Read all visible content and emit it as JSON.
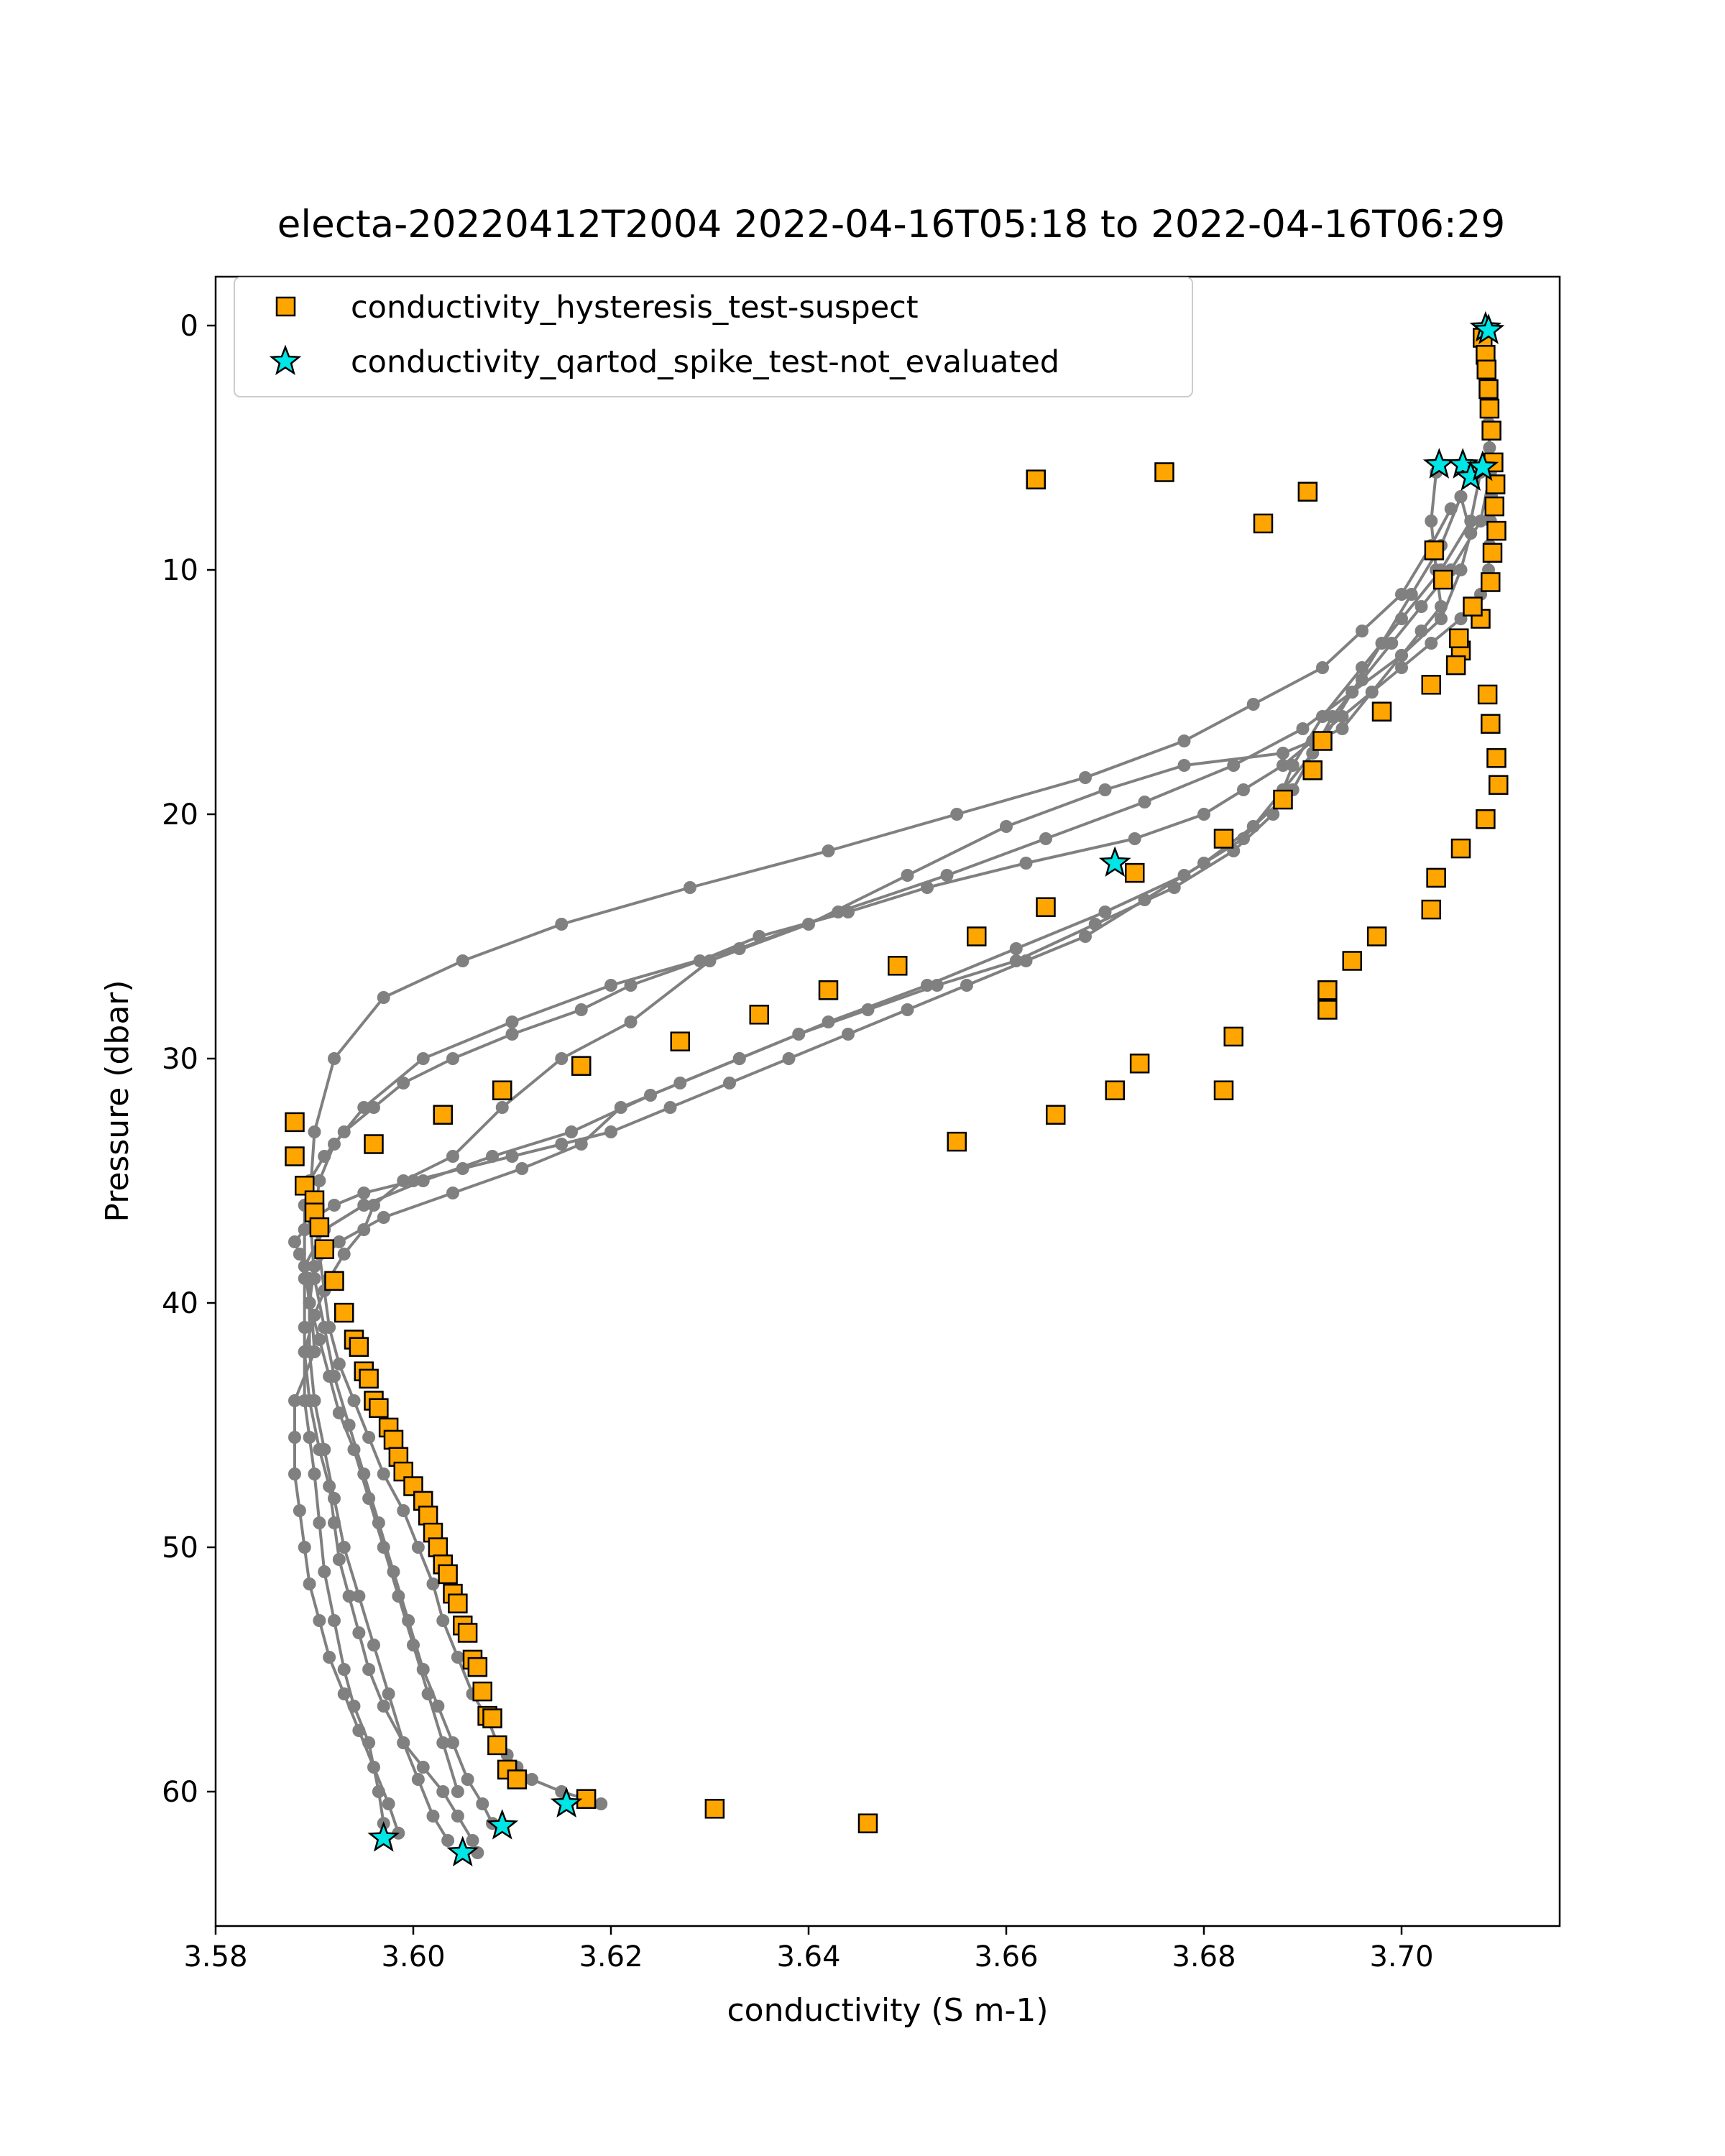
{
  "chart_data": {
    "type": "scatter",
    "title": "electa-20220412T2004 2022-04-16T05:18 to 2022-04-16T06:29",
    "xlabel": "conductivity (S m-1)",
    "ylabel": "Pressure (dbar)",
    "xlim": [
      3.58,
      3.716
    ],
    "ylim": [
      65.5,
      -2.0
    ],
    "y_inverted": true,
    "xticks": [
      "3.58",
      "3.60",
      "3.62",
      "3.64",
      "3.66",
      "3.68",
      "3.70"
    ],
    "yticks": [
      "0",
      "10",
      "20",
      "30",
      "40",
      "50",
      "60"
    ],
    "grid": false,
    "legend": {
      "placement": "upper-left",
      "entries": [
        "conductivity_hysteresis_test-suspect",
        "conductivity_qartod_spike_test-not_evaluated"
      ]
    },
    "colors": {
      "profile_line": "#808080",
      "suspect_marker": "#ffa500",
      "not_evaluated_marker": "#00e5e5",
      "marker_edge": "#000000"
    },
    "series": [
      {
        "style": "gray-line-with-dots",
        "x": [
          3.7083,
          3.7085,
          3.7086,
          3.7087,
          3.7088,
          3.7089,
          3.709,
          3.7091,
          3.709,
          3.7089,
          3.7088,
          3.708,
          3.706,
          3.703,
          3.7,
          3.697,
          3.694,
          3.691,
          3.688,
          3.684,
          3.68,
          3.673,
          3.662,
          3.652,
          3.644,
          3.635,
          3.629,
          3.622,
          3.617,
          3.61,
          3.604,
          3.599,
          3.596,
          3.593,
          3.591,
          3.5895,
          3.589,
          3.589,
          3.589,
          3.589,
          3.589,
          3.589,
          3.5895,
          3.59,
          3.5905,
          3.591,
          3.592,
          3.593,
          3.594,
          3.5955,
          3.5965,
          3.597
        ],
        "y": [
          0.2,
          1.0,
          2.0,
          3.0,
          4.0,
          5.0,
          6.0,
          7.0,
          8.0,
          9.0,
          10.0,
          11.0,
          12.0,
          13.0,
          14.0,
          15.0,
          16.0,
          17.0,
          18.0,
          19.0,
          20.0,
          21.0,
          22.0,
          23.0,
          24.0,
          25.0,
          26.0,
          27.0,
          28.0,
          29.0,
          30.0,
          31.0,
          32.0,
          33.0,
          34.0,
          35.0,
          36.0,
          37.0,
          39.0,
          41.0,
          42.0,
          44.0,
          45.5,
          47.0,
          49.0,
          51.0,
          53.0,
          55.0,
          56.5,
          58.0,
          60.0,
          61.3
        ]
      },
      {
        "style": "gray-line-with-dots",
        "x": [
          3.7035,
          3.703,
          3.7035,
          3.704,
          3.702,
          3.7,
          3.697,
          3.694,
          3.688,
          3.678,
          3.67,
          3.66,
          3.65,
          3.64,
          3.63,
          3.622,
          3.615,
          3.609,
          3.604,
          3.599,
          3.596,
          3.595,
          3.593,
          3.5915,
          3.59,
          3.589,
          3.5895,
          3.5905,
          3.5915,
          3.592,
          3.5925,
          3.5935,
          3.5945,
          3.5955,
          3.597,
          3.599,
          3.601,
          3.603,
          3.6045,
          3.606,
          3.6065
        ],
        "y": [
          6.0,
          8.0,
          10.0,
          11.5,
          12.5,
          13.5,
          15.0,
          16.5,
          17.5,
          18.0,
          19.0,
          20.5,
          22.5,
          24.5,
          26.0,
          28.5,
          30.0,
          32.0,
          34.0,
          35.0,
          36.0,
          37.0,
          38.0,
          39.0,
          40.5,
          42.0,
          44.0,
          46.0,
          47.5,
          49.0,
          50.5,
          52.0,
          53.5,
          55.0,
          56.5,
          58.0,
          59.0,
          60.0,
          61.0,
          62.0,
          62.5
        ]
      },
      {
        "style": "gray-line-with-dots",
        "x": [
          3.706,
          3.707,
          3.706,
          3.704,
          3.7,
          3.695,
          3.69,
          3.683,
          3.674,
          3.664,
          3.654,
          3.643,
          3.633,
          3.62,
          3.61,
          3.601,
          3.595,
          3.592,
          3.5905,
          3.59,
          3.5905,
          3.591,
          3.5915,
          3.5925,
          3.594,
          3.5955,
          3.597,
          3.599,
          3.6005,
          3.602,
          3.603,
          3.6045,
          3.606,
          3.6075,
          3.6085,
          3.6095,
          3.6105,
          3.612,
          3.615,
          3.619
        ],
        "y": [
          7.0,
          8.5,
          10.0,
          12.0,
          13.5,
          15.0,
          16.5,
          18.0,
          19.5,
          21.0,
          22.5,
          24.0,
          25.5,
          27.0,
          28.5,
          30.0,
          32.0,
          33.5,
          35.0,
          36.5,
          38.0,
          39.5,
          41.0,
          42.5,
          44.0,
          45.5,
          47.0,
          48.5,
          50.0,
          51.5,
          53.0,
          54.5,
          56.0,
          57.0,
          58.0,
          58.5,
          59.0,
          59.5,
          60.0,
          60.5
        ]
      },
      {
        "style": "gray-line-with-dots",
        "x": [
          3.705,
          3.703,
          3.7,
          3.696,
          3.692,
          3.685,
          3.678,
          3.668,
          3.655,
          3.642,
          3.628,
          3.615,
          3.605,
          3.597,
          3.592,
          3.59,
          3.5895,
          3.59,
          3.591,
          3.592,
          3.5935,
          3.595,
          3.5965,
          3.598,
          3.5995,
          3.601,
          3.6025,
          3.604,
          3.6055,
          3.607,
          3.608
        ],
        "y": [
          7.5,
          9.0,
          11.0,
          12.5,
          14.0,
          15.5,
          17.0,
          18.5,
          20.0,
          21.5,
          23.0,
          24.5,
          26.0,
          27.5,
          30.0,
          33.0,
          36.0,
          39.0,
          41.0,
          43.0,
          45.0,
          47.0,
          49.0,
          51.0,
          53.0,
          55.0,
          56.5,
          58.0,
          59.5,
          60.5,
          61.3
        ]
      },
      {
        "style": "gray-line-with-dots",
        "x": [
          3.708,
          3.707,
          3.704,
          3.7,
          3.696,
          3.692,
          3.689,
          3.687,
          3.683,
          3.677,
          3.669,
          3.661,
          3.653,
          3.646,
          3.639,
          3.633,
          3.627,
          3.621,
          3.617,
          3.611,
          3.604,
          3.597,
          3.5925,
          3.59,
          3.5895,
          3.5895,
          3.59,
          3.591,
          3.592,
          3.593,
          3.5945,
          3.596,
          3.5975,
          3.599,
          3.6005,
          3.602,
          3.6035
        ],
        "y": [
          6.0,
          8.0,
          10.0,
          12.0,
          14.0,
          16.0,
          18.0,
          20.0,
          21.5,
          23.0,
          24.5,
          26.0,
          27.0,
          28.0,
          29.0,
          30.0,
          31.0,
          32.0,
          33.5,
          34.5,
          35.5,
          36.5,
          37.5,
          38.5,
          40.0,
          42.0,
          44.0,
          46.0,
          48.0,
          50.0,
          52.0,
          54.0,
          56.0,
          58.0,
          59.5,
          61.0,
          62.0
        ]
      },
      {
        "style": "gray-line-with-dots",
        "x": [
          3.709,
          3.708,
          3.705,
          3.702,
          3.699,
          3.696,
          3.693,
          3.691,
          3.689,
          3.685,
          3.68,
          3.674,
          3.668,
          3.662,
          3.656,
          3.65,
          3.644,
          3.638,
          3.632,
          3.626,
          3.62,
          3.615,
          3.61,
          3.605,
          3.6,
          3.595,
          3.592,
          3.59,
          3.589,
          3.588,
          3.5885,
          3.5895,
          3.59,
          3.588,
          3.588,
          3.588,
          3.5885,
          3.589,
          3.5895,
          3.5905,
          3.5915,
          3.593,
          3.5945,
          3.596,
          3.5975,
          3.5985
        ],
        "y": [
          6.0,
          8.0,
          10.0,
          11.5,
          13.0,
          14.5,
          16.0,
          17.5,
          19.0,
          20.5,
          22.0,
          23.5,
          25.0,
          26.0,
          27.0,
          28.0,
          29.0,
          30.0,
          31.0,
          32.0,
          33.0,
          33.5,
          34.0,
          34.5,
          35.0,
          35.5,
          36.0,
          36.5,
          37.0,
          37.5,
          38.0,
          39.0,
          42.0,
          44.0,
          45.5,
          47.0,
          48.5,
          50.0,
          51.5,
          53.0,
          54.5,
          56.0,
          57.5,
          59.0,
          60.5,
          61.7
        ]
      },
      {
        "style": "gray-line-with-dots",
        "x": [
          3.706,
          3.704,
          3.701,
          3.698,
          3.695,
          3.692,
          3.688,
          3.684,
          3.678,
          3.67,
          3.661,
          3.652,
          3.642,
          3.633,
          3.624,
          3.616,
          3.608,
          3.601,
          3.595,
          3.591,
          3.589,
          3.5895,
          3.5905,
          3.5915,
          3.5925,
          3.594,
          3.5955,
          3.597,
          3.5985,
          3.6,
          3.6015,
          3.603,
          3.6045
        ],
        "y": [
          7.0,
          9.0,
          11.0,
          13.0,
          15.0,
          17.0,
          19.0,
          21.0,
          22.5,
          24.0,
          25.5,
          27.0,
          28.5,
          30.0,
          31.5,
          33.0,
          34.0,
          35.0,
          36.0,
          37.0,
          38.5,
          40.0,
          41.5,
          43.0,
          44.5,
          46.0,
          48.0,
          50.0,
          52.0,
          54.0,
          56.0,
          58.0,
          60.0
        ]
      },
      {
        "name": "conductivity_hysteresis_test-suspect",
        "style": "orange-square",
        "x": [
          3.7082,
          3.7085,
          3.7086,
          3.7088,
          3.7089,
          3.7091,
          3.7093,
          3.7095,
          3.7094,
          3.7096,
          3.7092,
          3.709,
          3.708,
          3.706,
          3.703,
          3.698,
          3.692,
          3.691,
          3.688,
          3.682,
          3.673,
          3.664,
          3.657,
          3.649,
          3.642,
          3.635,
          3.627,
          3.617,
          3.609,
          3.603,
          3.596,
          3.588,
          3.588,
          3.589,
          3.59,
          3.59,
          3.5905,
          3.591,
          3.592,
          3.593,
          3.594,
          3.5945,
          3.595,
          3.5955,
          3.596,
          3.5965,
          3.5975,
          3.598,
          3.5985,
          3.599,
          3.6,
          3.601,
          3.6015,
          3.602,
          3.6025,
          3.603,
          3.6035,
          3.604,
          3.6045,
          3.605,
          3.6055,
          3.606,
          3.6065,
          3.607,
          3.6075,
          3.608,
          3.6085,
          3.6095,
          3.6105,
          3.6175,
          3.6305,
          3.646,
          3.655,
          3.665,
          3.671,
          3.6735,
          3.683,
          3.6925,
          3.6925,
          3.695,
          3.6975,
          3.703,
          3.7035,
          3.706,
          3.7085,
          3.7098,
          3.7096,
          3.709,
          3.7087,
          3.7055,
          3.7058,
          3.7072,
          3.7042,
          3.7033,
          3.686,
          3.6905,
          3.676,
          3.663,
          3.682
        ],
        "y": [
          0.5,
          1.2,
          1.8,
          2.6,
          3.4,
          4.3,
          5.6,
          6.5,
          7.4,
          8.4,
          9.3,
          10.5,
          12.0,
          13.3,
          14.7,
          15.8,
          17.0,
          18.2,
          19.4,
          21.0,
          22.4,
          23.8,
          25.0,
          26.2,
          27.2,
          28.2,
          29.3,
          30.3,
          31.3,
          32.3,
          33.5,
          32.6,
          34.0,
          35.2,
          35.8,
          36.3,
          36.9,
          37.8,
          39.1,
          40.4,
          41.5,
          41.8,
          42.8,
          43.1,
          44.0,
          44.3,
          45.1,
          45.6,
          46.3,
          46.9,
          47.5,
          48.1,
          48.7,
          49.4,
          50.0,
          50.7,
          51.1,
          51.9,
          52.3,
          53.2,
          53.5,
          54.6,
          54.9,
          55.9,
          56.9,
          57.0,
          58.1,
          59.1,
          59.5,
          60.3,
          60.7,
          61.3,
          33.4,
          32.3,
          31.3,
          30.2,
          29.1,
          28.0,
          27.2,
          26.0,
          25.0,
          23.9,
          22.6,
          21.4,
          20.2,
          18.8,
          17.7,
          16.3,
          15.1,
          13.9,
          12.8,
          11.5,
          10.4,
          9.2,
          8.1,
          6.8,
          6.0,
          6.3,
          31.3
        ],
        "y_note": "values read from markers along profiles"
      },
      {
        "name": "conductivity_qartod_spike_test-not_evaluated",
        "style": "cyan-star",
        "x": [
          3.7085,
          3.7088,
          3.7038,
          3.7062,
          3.707,
          3.7082,
          3.671,
          3.6155,
          3.609,
          3.605,
          3.597
        ],
        "y": [
          0.1,
          0.2,
          5.7,
          5.7,
          6.2,
          5.8,
          22.0,
          60.5,
          61.4,
          62.5,
          61.9
        ]
      }
    ]
  }
}
